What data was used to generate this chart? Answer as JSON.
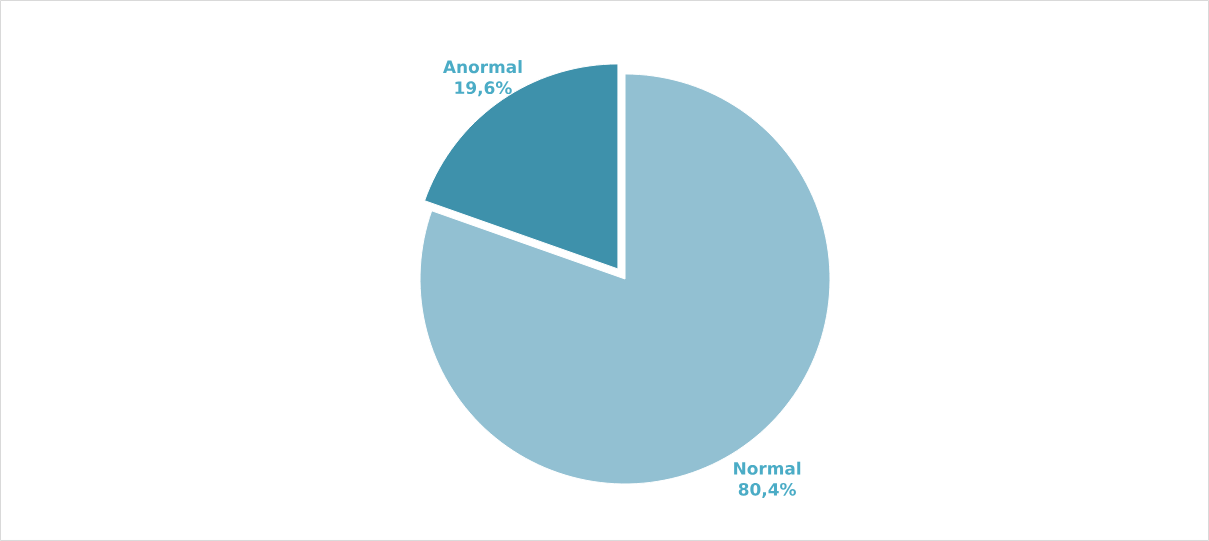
{
  "chart_data": {
    "type": "pie",
    "categories": [
      "Normal",
      "Anormal"
    ],
    "values": [
      80.4,
      19.6
    ],
    "value_labels": [
      "80,4%",
      "19,6%"
    ],
    "colors": [
      "#92c0d2",
      "#3e91ab"
    ]
  }
}
